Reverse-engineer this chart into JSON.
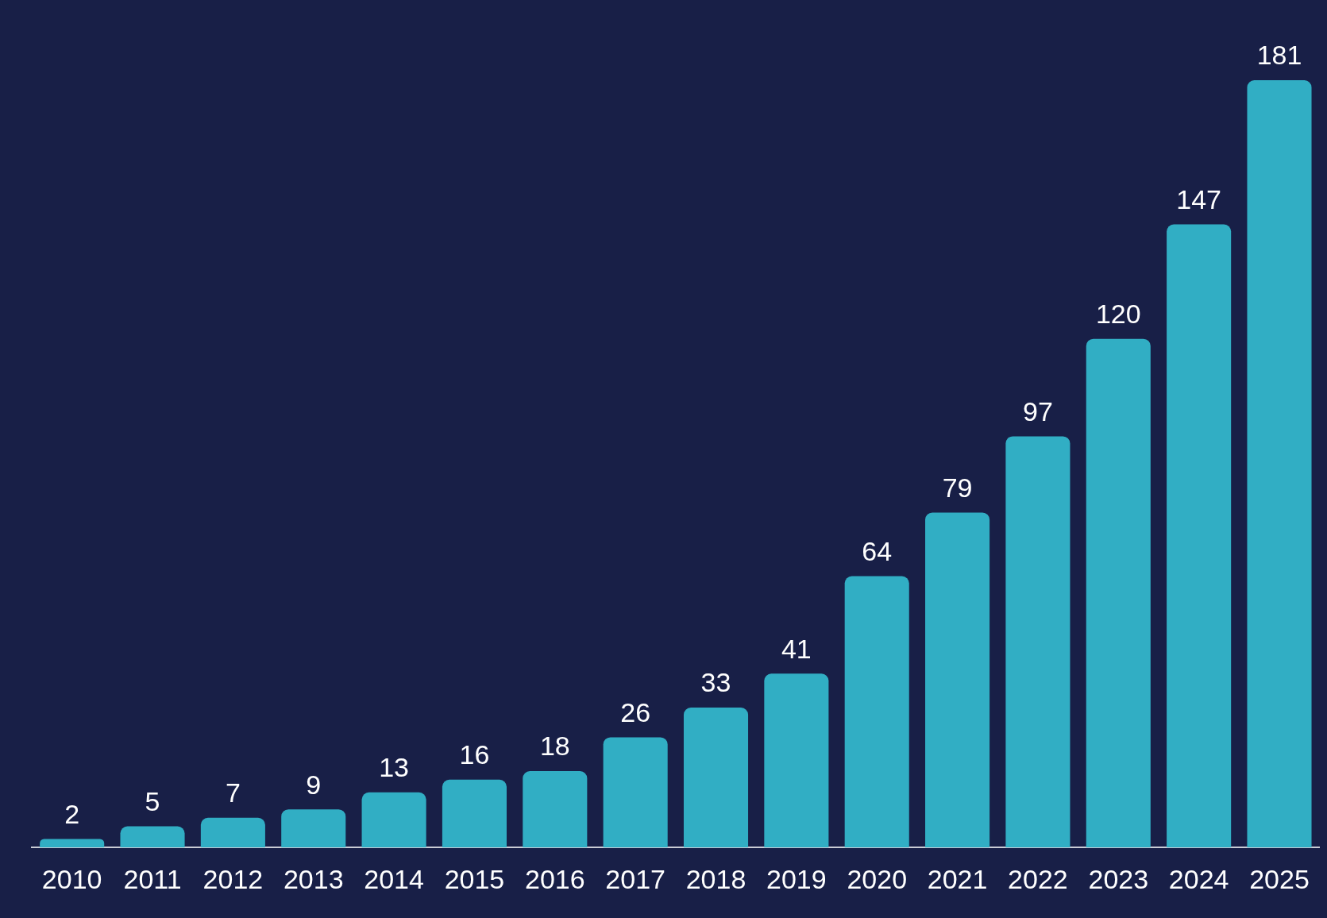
{
  "chart_data": {
    "type": "bar",
    "categories": [
      "2010",
      "2011",
      "2012",
      "2013",
      "2014",
      "2015",
      "2016",
      "2017",
      "2018",
      "2019",
      "2020",
      "2021",
      "2022",
      "2023",
      "2024",
      "2025"
    ],
    "values": [
      2,
      5,
      7,
      9,
      13,
      16,
      18,
      26,
      33,
      41,
      64,
      79,
      97,
      120,
      147,
      181
    ],
    "color": "#31aec4",
    "data_labels": true,
    "grid": false,
    "legend": false
  }
}
